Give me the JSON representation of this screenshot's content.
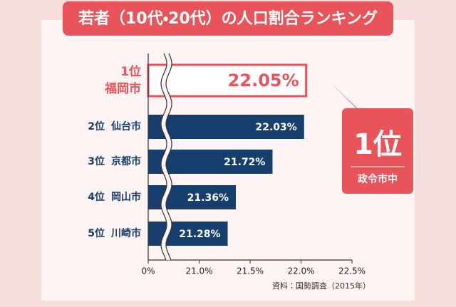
{
  "chart_data": {
    "type": "bar",
    "orientation": "horizontal",
    "title": "若者（10代・20代）の人口割合ランキング",
    "ranks": [
      "1位",
      "2位",
      "3位",
      "4位",
      "5位"
    ],
    "categories": [
      "福岡市",
      "仙台市",
      "京都市",
      "岡山市",
      "川崎市"
    ],
    "values": [
      22.05,
      22.03,
      21.72,
      21.36,
      21.28
    ],
    "value_labels": [
      "22.05%",
      "22.03%",
      "21.72%",
      "21.36%",
      "21.28%"
    ],
    "color": "#173f6e",
    "highlight_index": 0,
    "highlight_color": "#e8545a",
    "xlim": [
      0,
      22.5
    ],
    "axis_break": [
      0,
      20.5
    ],
    "xticks": [
      {
        "value": 0,
        "label": "0%"
      },
      {
        "value": 21.0,
        "label": "21.0%"
      },
      {
        "value": 21.5,
        "label": "21.5%"
      },
      {
        "value": 22.0,
        "label": "22.0%"
      },
      {
        "value": 22.5,
        "label": "22.5%"
      }
    ],
    "grid": false,
    "callout": {
      "rank": "1位",
      "note": "政令市中"
    },
    "source": "資料：国勢調査（2015年）"
  }
}
